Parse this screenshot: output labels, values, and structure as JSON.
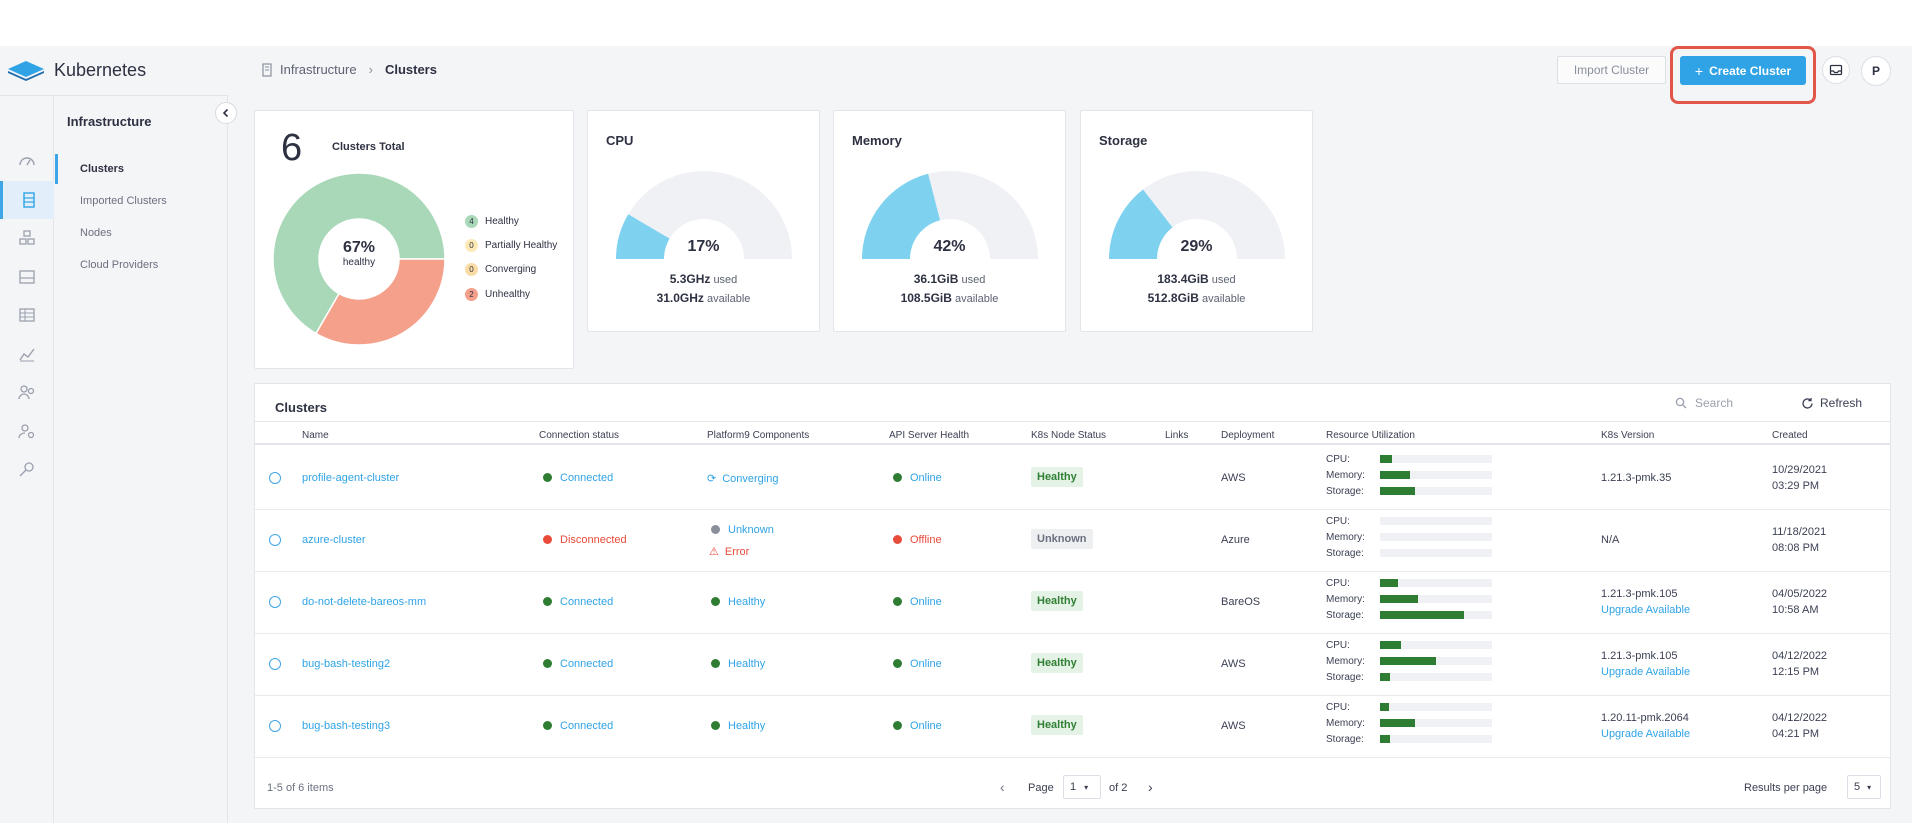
{
  "app": {
    "name": "Kubernetes"
  },
  "colors": {
    "accent": "#2fa3e6",
    "healthy": "#a9d8b8",
    "unhealthy": "#f4a08a",
    "gauge": "#7fd2ef",
    "gauge_track": "#f0f1f5",
    "online": "#2e7d32",
    "error": "#e84b3a"
  },
  "rail_icons": [
    "dashboard-icon",
    "clusters-icon",
    "apps-icon",
    "storage-icon",
    "table-icon",
    "metrics-icon",
    "users-group-icon",
    "user-settings-icon",
    "key-icon"
  ],
  "subnav": {
    "title": "Infrastructure",
    "items": [
      {
        "label": "Clusters",
        "active": true
      },
      {
        "label": "Imported Clusters",
        "active": false
      },
      {
        "label": "Nodes",
        "active": false
      },
      {
        "label": "Cloud Providers",
        "active": false
      }
    ]
  },
  "breadcrumb": {
    "parent": "Infrastructure",
    "current": "Clusters"
  },
  "header": {
    "import_label": "Import Cluster",
    "create_label": "Create Cluster",
    "avatar_initial": "P"
  },
  "summary": {
    "total": "6",
    "total_label": "Clusters Total",
    "center_pct": "67%",
    "center_label": "healthy",
    "legend": [
      {
        "count": "4",
        "label": "Healthy",
        "color": "#a9d8b8"
      },
      {
        "count": "0",
        "label": "Partially Healthy",
        "color": "#fde9b5"
      },
      {
        "count": "0",
        "label": "Converging",
        "color": "#fcdca6"
      },
      {
        "count": "2",
        "label": "Unhealthy",
        "color": "#f4a08a"
      }
    ],
    "donut": {
      "healthy": 4,
      "unhealthy": 2
    }
  },
  "gauges": [
    {
      "title": "CPU",
      "pct_text": "17%",
      "fraction": 0.17,
      "used": "5.3GHz",
      "used_label": "used",
      "available": "31.0GHz",
      "available_label": "available"
    },
    {
      "title": "Memory",
      "pct_text": "42%",
      "fraction": 0.42,
      "used": "36.1GiB",
      "used_label": "used",
      "available": "108.5GiB",
      "available_label": "available"
    },
    {
      "title": "Storage",
      "pct_text": "29%",
      "fraction": 0.29,
      "used": "183.4GiB",
      "used_label": "used",
      "available": "512.8GiB",
      "available_label": "available"
    }
  ],
  "table": {
    "title": "Clusters",
    "search_placeholder": "Search",
    "refresh_label": "Refresh",
    "columns": [
      "Name",
      "Connection status",
      "Platform9 Components",
      "API Server Health",
      "K8s Node Status",
      "Links",
      "Deployment",
      "Resource Utilization",
      "K8s Version",
      "Created"
    ],
    "res_labels": {
      "cpu": "CPU:",
      "memory": "Memory:",
      "storage": "Storage:"
    },
    "rows": [
      {
        "name": "profile-agent-cluster",
        "conn": "Connected",
        "conn_ok": true,
        "comp": "Converging",
        "comp2": "",
        "comp_kind": "converging",
        "api": "Online",
        "api_ok": true,
        "node": "Healthy",
        "node_ok": true,
        "deploy": "AWS",
        "cpu": 0.11,
        "mem": 0.27,
        "sto": 0.31,
        "version": "1.21.3-pmk.35",
        "upgrade": "",
        "created_date": "10/29/2021",
        "created_time": "03:29 PM"
      },
      {
        "name": "azure-cluster",
        "conn": "Disconnected",
        "conn_ok": false,
        "comp": "Unknown",
        "comp2": "Error",
        "comp_kind": "unknown",
        "api": "Offline",
        "api_ok": false,
        "node": "Unknown",
        "node_ok": false,
        "deploy": "Azure",
        "cpu": 0,
        "mem": 0,
        "sto": 0,
        "version": "N/A",
        "upgrade": "",
        "created_date": "11/18/2021",
        "created_time": "08:08 PM"
      },
      {
        "name": "do-not-delete-bareos-mm",
        "conn": "Connected",
        "conn_ok": true,
        "comp": "Healthy",
        "comp2": "",
        "comp_kind": "healthy",
        "api": "Online",
        "api_ok": true,
        "node": "Healthy",
        "node_ok": true,
        "deploy": "BareOS",
        "cpu": 0.16,
        "mem": 0.34,
        "sto": 0.75,
        "version": "1.21.3-pmk.105",
        "upgrade": "Upgrade Available",
        "created_date": "04/05/2022",
        "created_time": "10:58 AM"
      },
      {
        "name": "bug-bash-testing2",
        "conn": "Connected",
        "conn_ok": true,
        "comp": "Healthy",
        "comp2": "",
        "comp_kind": "healthy",
        "api": "Online",
        "api_ok": true,
        "node": "Healthy",
        "node_ok": true,
        "deploy": "AWS",
        "cpu": 0.19,
        "mem": 0.5,
        "sto": 0.09,
        "version": "1.21.3-pmk.105",
        "upgrade": "Upgrade Available",
        "created_date": "04/12/2022",
        "created_time": "12:15 PM"
      },
      {
        "name": "bug-bash-testing3",
        "conn": "Connected",
        "conn_ok": true,
        "comp": "Healthy",
        "comp2": "",
        "comp_kind": "healthy",
        "api": "Online",
        "api_ok": true,
        "node": "Healthy",
        "node_ok": true,
        "deploy": "AWS",
        "cpu": 0.08,
        "mem": 0.31,
        "sto": 0.09,
        "version": "1.20.11-pmk.2064",
        "upgrade": "Upgrade Available",
        "created_date": "04/12/2022",
        "created_time": "04:21 PM"
      }
    ]
  },
  "footer": {
    "range_text": "1-5 of 6 items",
    "page_label": "Page",
    "page_value": "1",
    "of_text": "of 2",
    "per_page_label": "Results per page",
    "per_page_value": "5"
  }
}
